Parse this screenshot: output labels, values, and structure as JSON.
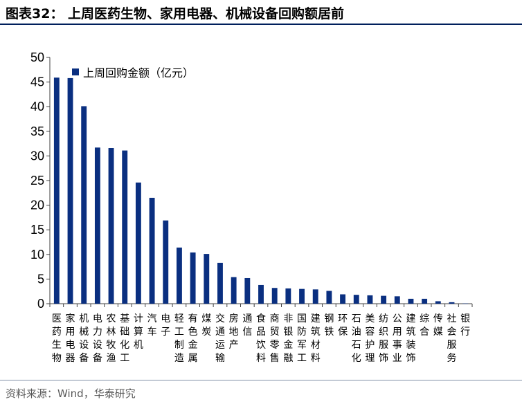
{
  "header": {
    "title": "图表32：  上周医药生物、家用电器、机械设备回购额居前"
  },
  "footer": {
    "source": "资料来源：Wind，华泰研究"
  },
  "colors": {
    "bar": "#0a2f80",
    "rule": "#001f5c",
    "axis": "#404040"
  },
  "chart_data": {
    "type": "bar",
    "title": "",
    "xlabel": "",
    "ylabel": "",
    "ylim": [
      0,
      50
    ],
    "yticks": [
      0,
      5,
      10,
      15,
      20,
      25,
      30,
      35,
      40,
      45,
      50
    ],
    "grid": false,
    "legend_position": "top-left",
    "categories": [
      "医药生物",
      "家用电器",
      "机械设备",
      "电力设备",
      "农林牧渔",
      "基础化工",
      "计算机",
      "汽车",
      "电子",
      "轻工制造",
      "有色金属",
      "煤炭",
      "交通运输",
      "房地产",
      "通信",
      "食品饮料",
      "商贸零售",
      "非银金融",
      "国防军工",
      "建筑材料",
      "钢铁",
      "环保",
      "石油石化",
      "美容护理",
      "纺织服饰",
      "公用事业",
      "建筑装饰",
      "综合",
      "传媒",
      "社会服务",
      "银行"
    ],
    "series": [
      {
        "name": "上周回购金额（亿元）",
        "values": [
          45.9,
          45.8,
          40.1,
          31.7,
          31.6,
          31.1,
          24.6,
          21.5,
          16.9,
          11.4,
          10.4,
          10.1,
          8.3,
          5.4,
          5.2,
          3.8,
          3.2,
          3.1,
          3.0,
          2.9,
          2.6,
          1.9,
          1.8,
          1.7,
          1.6,
          1.5,
          1.0,
          1.0,
          0.5,
          0.3,
          0.05
        ]
      }
    ]
  }
}
